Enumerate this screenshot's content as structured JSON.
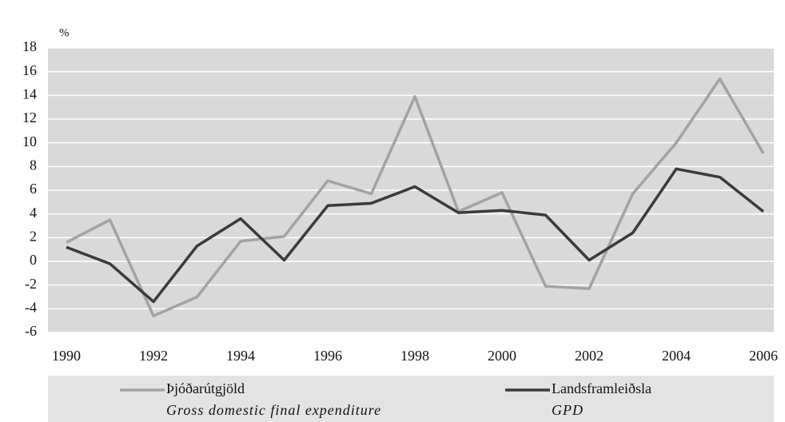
{
  "chart_data": {
    "type": "line",
    "y_unit_label": "%",
    "x": [
      1990,
      1991,
      1992,
      1993,
      1994,
      1995,
      1996,
      1997,
      1998,
      1999,
      2000,
      2001,
      2002,
      2003,
      2004,
      2005,
      2006
    ],
    "xlim": [
      1990,
      2006
    ],
    "xticks": [
      1990,
      1992,
      1994,
      1996,
      1998,
      2000,
      2002,
      2004,
      2006
    ],
    "ylim": [
      -6,
      18
    ],
    "yticks": [
      -6,
      -4,
      -2,
      0,
      2,
      4,
      6,
      8,
      10,
      12,
      14,
      16,
      18
    ],
    "grid": true,
    "legend": "bottom",
    "series": [
      {
        "name": "Þjóðarútgjöld",
        "name_en": "Gross domestic final expenditure",
        "color": "#a3a3a3",
        "values": [
          1.6,
          3.5,
          -4.6,
          -3.0,
          1.7,
          2.1,
          6.8,
          5.7,
          13.9,
          4.2,
          5.8,
          -2.1,
          -2.3,
          5.7,
          10.0,
          15.4,
          9.1
        ]
      },
      {
        "name": "Landsframleiðsla",
        "name_en": "GPD",
        "color": "#3b3b3b",
        "values": [
          1.2,
          -0.2,
          -3.4,
          1.3,
          3.6,
          0.1,
          4.7,
          4.9,
          6.3,
          4.1,
          4.3,
          3.9,
          0.1,
          2.4,
          7.8,
          7.1,
          4.2
        ]
      }
    ]
  }
}
